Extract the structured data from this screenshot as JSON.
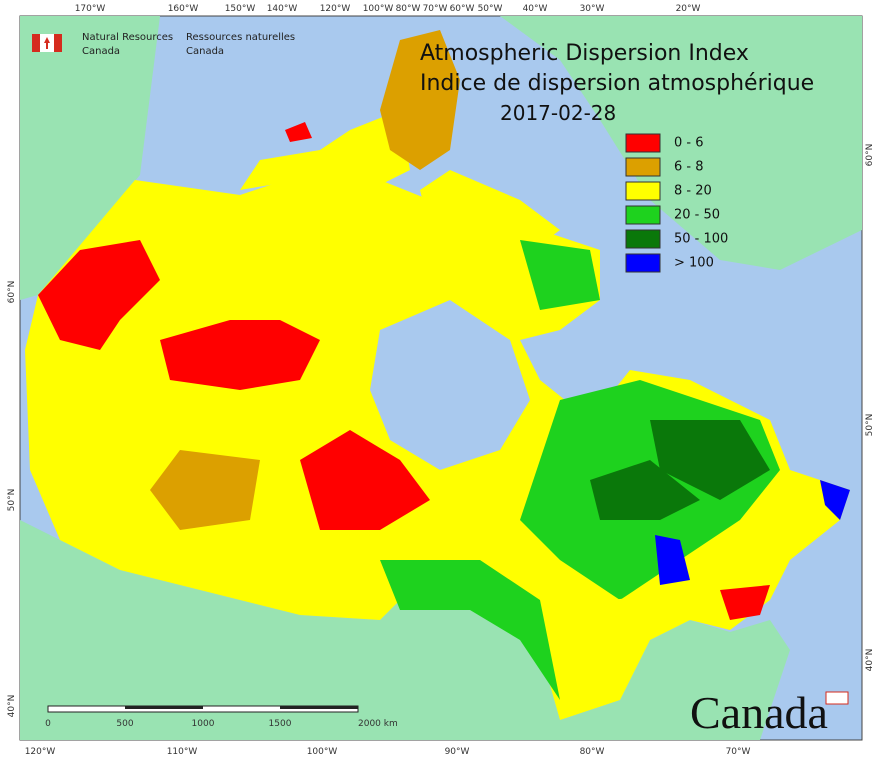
{
  "header": {
    "title_en": "Atmospheric Dispersion Index",
    "title_fr": "Indice de dispersion atmosphérique",
    "date": "2017-02-28"
  },
  "agency": {
    "en": [
      "Natural Resources",
      "Canada"
    ],
    "fr": [
      "Ressources naturelles",
      "Canada"
    ]
  },
  "legend": [
    {
      "label": "0 - 6",
      "color": "#ff0000"
    },
    {
      "label": "6 - 8",
      "color": "#dca000"
    },
    {
      "label": "8 - 20",
      "color": "#ffff00"
    },
    {
      "label": "20 - 50",
      "color": "#1ed21e"
    },
    {
      "label": "50 - 100",
      "color": "#0a780a"
    },
    {
      "label": "> 100",
      "color": "#0000ff"
    }
  ],
  "top_longitudes": [
    "170°W",
    "160°W",
    "150°W",
    "140°W",
    "120°W",
    "100°W",
    "80°W",
    "70°W",
    "60°W",
    "50°W",
    "40°W",
    "30°W",
    "20°W"
  ],
  "bottom_longitudes": [
    "120°W",
    "110°W",
    "100°W",
    "90°W",
    "80°W",
    "70°W"
  ],
  "left_latitudes": [
    "60°N",
    "50°N",
    "40°N"
  ],
  "right_latitudes": [
    "60°N",
    "50°N",
    "40°N"
  ],
  "scale_bar": [
    "0",
    "500",
    "1000",
    "1500",
    "2000 km"
  ],
  "wordmark": "Canada"
}
